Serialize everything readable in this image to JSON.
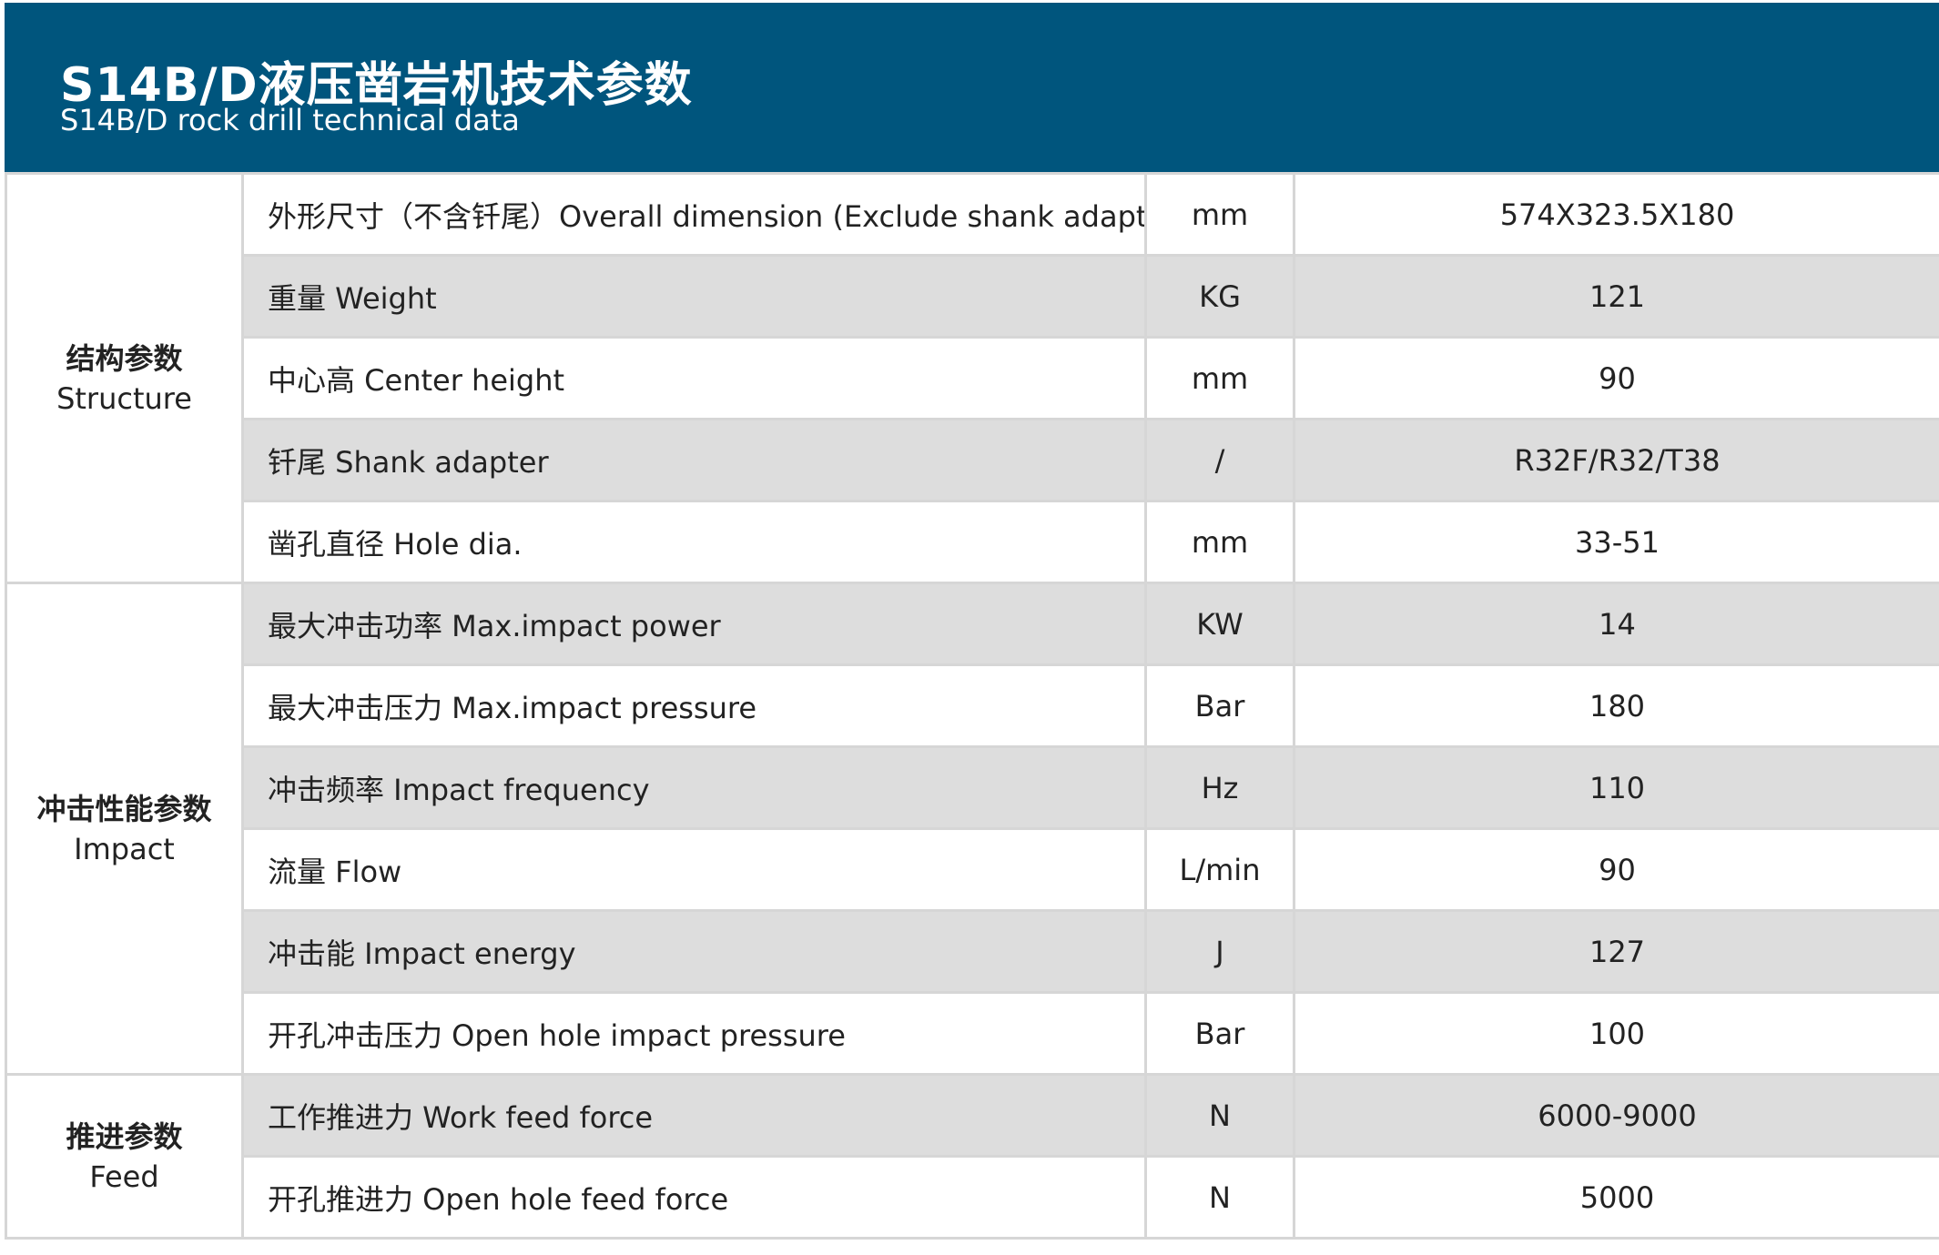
{
  "header": {
    "title": "S14B/D液压凿岩机技术参数",
    "subtitle": "S14B/D rock drill technical data",
    "background_color": "#00557d"
  },
  "groups": [
    {
      "name_cn": "结构参数",
      "name_en": "Structure",
      "rows": [
        {
          "param": "外形尺寸（不含钎尾）Overall dimension (Exclude shank adapter)",
          "unit": "mm",
          "value": "574X323.5X180"
        },
        {
          "param": "重量 Weight",
          "unit": "KG",
          "value": "121"
        },
        {
          "param": "中心高 Center height",
          "unit": "mm",
          "value": "90"
        },
        {
          "param": "钎尾 Shank adapter",
          "unit": "/",
          "value": "R32F/R32/T38"
        },
        {
          "param": "凿孔直径 Hole dia.",
          "unit": "mm",
          "value": "33-51"
        }
      ]
    },
    {
      "name_cn": "冲击性能参数",
      "name_en": "Impact",
      "rows": [
        {
          "param": "最大冲击功率 Max.impact power",
          "unit": "KW",
          "value": "14"
        },
        {
          "param": "最大冲击压力 Max.impact pressure",
          "unit": "Bar",
          "value": "180"
        },
        {
          "param": "冲击频率 Impact frequency",
          "unit": "Hz",
          "value": "110"
        },
        {
          "param": "流量 Flow",
          "unit": "L/min",
          "value": "90"
        },
        {
          "param": "冲击能 Impact energy",
          "unit": "J",
          "value": "127"
        },
        {
          "param": "开孔冲击压力 Open hole impact pressure",
          "unit": "Bar",
          "value": "100"
        }
      ]
    },
    {
      "name_cn": "推进参数",
      "name_en": "Feed",
      "rows": [
        {
          "param": "工作推进力 Work feed force",
          "unit": "N",
          "value": "6000-9000"
        },
        {
          "param": "开孔推进力 Open hole feed force",
          "unit": "N",
          "value": "5000"
        }
      ]
    }
  ]
}
